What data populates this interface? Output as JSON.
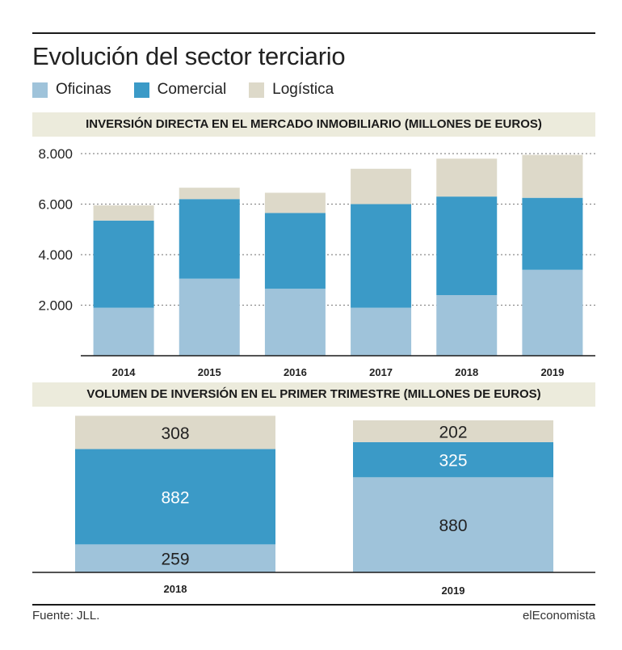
{
  "title": "Evolución del sector terciario",
  "legend": [
    {
      "label": "Oficinas",
      "color": "#9fc3da"
    },
    {
      "label": "Comercial",
      "color": "#3b9ac7"
    },
    {
      "label": "Logística",
      "color": "#ddd9c9"
    }
  ],
  "source": "Fuente: JLL.",
  "brand": "elEconomista",
  "chart_data": [
    {
      "type": "bar",
      "stacked": true,
      "title": "INVERSIÓN DIRECTA EN EL MERCADO INMOBILIARIO (MILLONES DE EUROS)",
      "categories": [
        "2014",
        "2015",
        "2016",
        "2017",
        "2018",
        "2019"
      ],
      "series": [
        {
          "name": "Oficinas",
          "values": [
            1900,
            3050,
            2650,
            1900,
            2400,
            3400
          ]
        },
        {
          "name": "Comercial",
          "values": [
            3450,
            3150,
            3000,
            4100,
            3900,
            2850
          ]
        },
        {
          "name": "Logística",
          "values": [
            600,
            450,
            800,
            1400,
            1500,
            1700
          ]
        }
      ],
      "ylim": [
        0,
        8000
      ],
      "yticks": [
        "2.000",
        "4.000",
        "6.000",
        "8.000"
      ],
      "ytick_values": [
        2000,
        4000,
        6000,
        8000
      ],
      "grid": true
    },
    {
      "type": "bar",
      "stacked": true,
      "title": "VOLUMEN DE INVERSIÓN EN EL PRIMER TRIMESTRE (MILLONES DE EUROS)",
      "categories": [
        "2018",
        "2019"
      ],
      "series": [
        {
          "name": "Oficinas",
          "values": [
            259,
            880
          ],
          "labels": [
            "259",
            "880"
          ]
        },
        {
          "name": "Comercial",
          "values": [
            882,
            325
          ],
          "labels": [
            "882",
            "325"
          ]
        },
        {
          "name": "Logística",
          "values": [
            308,
            202
          ],
          "labels": [
            "308",
            "202"
          ]
        }
      ]
    }
  ]
}
